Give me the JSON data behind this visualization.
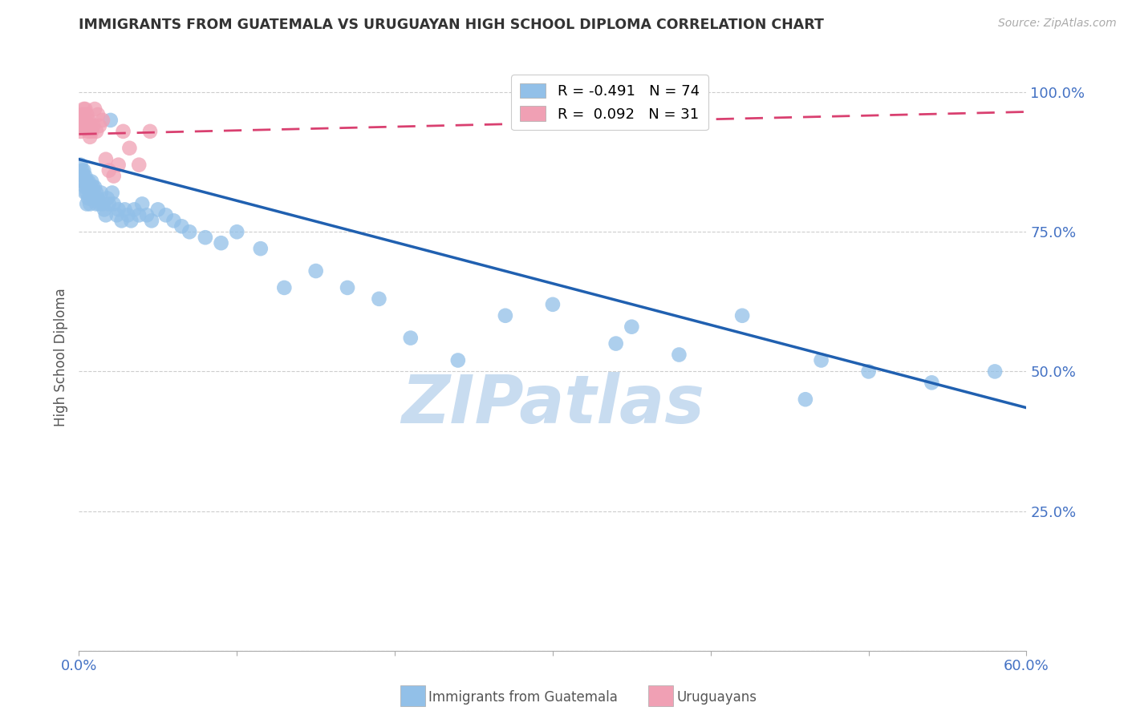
{
  "title": "IMMIGRANTS FROM GUATEMALA VS URUGUAYAN HIGH SCHOOL DIPLOMA CORRELATION CHART",
  "source": "Source: ZipAtlas.com",
  "ylabel": "High School Diploma",
  "blue_color": "#92C0E8",
  "pink_color": "#F0A0B4",
  "blue_line_color": "#2060B0",
  "pink_line_color": "#D94070",
  "watermark_text": "ZIPatlas",
  "watermark_color": "#C8DCF0",
  "background_color": "#FFFFFF",
  "axis_label_color": "#4472C4",
  "grid_color": "#C8C8C8",
  "legend_blue_label": "R = -0.491   N = 74",
  "legend_pink_label": "R =  0.092   N = 31",
  "bottom_legend_blue": "Immigrants from Guatemala",
  "bottom_legend_pink": "Uruguayans",
  "xlim": [
    0.0,
    0.6
  ],
  "ylim": [
    0.0,
    1.05
  ],
  "x_ticks": [
    0.0,
    0.1,
    0.2,
    0.3,
    0.4,
    0.5,
    0.6
  ],
  "x_tick_labels": [
    "0.0%",
    "",
    "",
    "",
    "",
    "",
    "60.0%"
  ],
  "y_ticks": [
    0.0,
    0.25,
    0.5,
    0.75,
    1.0
  ],
  "y_tick_labels": [
    "",
    "25.0%",
    "50.0%",
    "75.0%",
    "100.0%"
  ],
  "blue_trend_x": [
    0.0,
    0.6
  ],
  "blue_trend_y": [
    0.88,
    0.435
  ],
  "pink_trend_x": [
    0.0,
    0.6
  ],
  "pink_trend_y": [
    0.925,
    0.965
  ],
  "blue_scatter_x": [
    0.001,
    0.002,
    0.002,
    0.003,
    0.003,
    0.003,
    0.004,
    0.004,
    0.004,
    0.005,
    0.005,
    0.005,
    0.006,
    0.006,
    0.006,
    0.007,
    0.007,
    0.007,
    0.008,
    0.008,
    0.009,
    0.009,
    0.01,
    0.01,
    0.011,
    0.011,
    0.012,
    0.013,
    0.014,
    0.015,
    0.016,
    0.017,
    0.018,
    0.019,
    0.02,
    0.021,
    0.022,
    0.024,
    0.025,
    0.027,
    0.029,
    0.031,
    0.033,
    0.035,
    0.038,
    0.04,
    0.043,
    0.046,
    0.05,
    0.055,
    0.06,
    0.065,
    0.07,
    0.08,
    0.09,
    0.1,
    0.115,
    0.13,
    0.15,
    0.17,
    0.19,
    0.21,
    0.24,
    0.27,
    0.3,
    0.34,
    0.38,
    0.42,
    0.46,
    0.35,
    0.47,
    0.5,
    0.54,
    0.58
  ],
  "blue_scatter_y": [
    0.87,
    0.86,
    0.84,
    0.86,
    0.85,
    0.84,
    0.85,
    0.83,
    0.82,
    0.84,
    0.82,
    0.8,
    0.84,
    0.83,
    0.81,
    0.83,
    0.82,
    0.8,
    0.84,
    0.82,
    0.83,
    0.81,
    0.83,
    0.81,
    0.82,
    0.8,
    0.81,
    0.8,
    0.82,
    0.8,
    0.79,
    0.78,
    0.81,
    0.8,
    0.95,
    0.82,
    0.8,
    0.78,
    0.79,
    0.77,
    0.79,
    0.78,
    0.77,
    0.79,
    0.78,
    0.8,
    0.78,
    0.77,
    0.79,
    0.78,
    0.77,
    0.76,
    0.75,
    0.74,
    0.73,
    0.75,
    0.72,
    0.65,
    0.68,
    0.65,
    0.63,
    0.56,
    0.52,
    0.6,
    0.62,
    0.55,
    0.53,
    0.6,
    0.45,
    0.58,
    0.52,
    0.5,
    0.48,
    0.5
  ],
  "pink_scatter_x": [
    0.001,
    0.001,
    0.002,
    0.002,
    0.002,
    0.003,
    0.003,
    0.003,
    0.004,
    0.004,
    0.005,
    0.005,
    0.006,
    0.006,
    0.007,
    0.007,
    0.008,
    0.009,
    0.01,
    0.011,
    0.012,
    0.013,
    0.015,
    0.017,
    0.019,
    0.022,
    0.025,
    0.028,
    0.032,
    0.038,
    0.045
  ],
  "pink_scatter_y": [
    0.94,
    0.93,
    0.96,
    0.95,
    0.94,
    0.97,
    0.96,
    0.94,
    0.97,
    0.95,
    0.96,
    0.94,
    0.95,
    0.93,
    0.94,
    0.92,
    0.93,
    0.94,
    0.97,
    0.93,
    0.96,
    0.94,
    0.95,
    0.88,
    0.86,
    0.85,
    0.87,
    0.93,
    0.9,
    0.87,
    0.93
  ]
}
